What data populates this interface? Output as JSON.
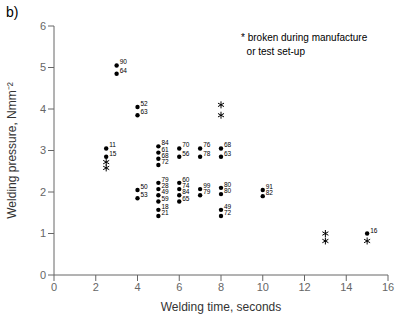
{
  "chart_data": {
    "type": "scatter",
    "title": "b)",
    "x_label": "Welding time, seconds",
    "y_label": "Welding pressure, Nmm⁻²",
    "annotation": "* broken during manufacture\n  or test set-up",
    "xlim": [
      0,
      16
    ],
    "ylim": [
      0,
      6
    ],
    "xticks": [
      0,
      2,
      4,
      6,
      8,
      10,
      12,
      14,
      16
    ],
    "yticks": [
      0,
      1,
      2,
      3,
      4,
      5,
      6
    ],
    "color": "black",
    "x": [
      3,
      3,
      4,
      4,
      2.5,
      2.5,
      2.5,
      2.5,
      5,
      5,
      5,
      5,
      6,
      6,
      7,
      7,
      8,
      8,
      4,
      4,
      5,
      5,
      5,
      5,
      5,
      5,
      6,
      6,
      6,
      6,
      7,
      7,
      8,
      8,
      8,
      8,
      8,
      8,
      10,
      10,
      13,
      13,
      15,
      15
    ],
    "values": [
      5.05,
      4.85,
      4.05,
      3.85,
      3.05,
      2.85,
      2.72,
      2.58,
      3.1,
      2.95,
      2.8,
      2.65,
      3.05,
      2.85,
      3.05,
      2.85,
      3.05,
      2.85,
      2.05,
      1.85,
      2.22,
      2.07,
      1.92,
      1.77,
      1.57,
      1.42,
      2.22,
      2.07,
      1.92,
      1.77,
      2.07,
      1.92,
      2.1,
      1.95,
      1.57,
      1.42,
      4.1,
      3.85,
      2.05,
      1.9,
      1.0,
      0.82,
      1.0,
      0.82
    ],
    "point_labels": [
      "90",
      "64",
      "52",
      "63",
      "11",
      "15",
      null,
      null,
      "84",
      "61",
      "68",
      "72",
      "70",
      "56",
      "76",
      "78",
      "68",
      "63",
      "50",
      "53",
      "79",
      "28",
      "49",
      "59",
      "18",
      "21",
      "60",
      "74",
      "84",
      "65",
      "99",
      "79",
      "80",
      "80",
      "49",
      "72",
      null,
      null,
      "91",
      "82",
      null,
      null,
      "16",
      null
    ],
    "markers": [
      "circle",
      "circle",
      "circle",
      "circle",
      "circle",
      "circle",
      "asterisk",
      "asterisk",
      "circle",
      "circle",
      "circle",
      "circle",
      "circle",
      "circle",
      "circle",
      "circle",
      "circle",
      "circle",
      "circle",
      "circle",
      "circle",
      "circle",
      "circle",
      "circle",
      "circle",
      "circle",
      "circle",
      "circle",
      "circle",
      "circle",
      "circle",
      "circle",
      "circle",
      "circle",
      "circle",
      "circle",
      "asterisk",
      "asterisk",
      "circle",
      "circle",
      "asterisk",
      "asterisk",
      "circle",
      "asterisk"
    ]
  }
}
